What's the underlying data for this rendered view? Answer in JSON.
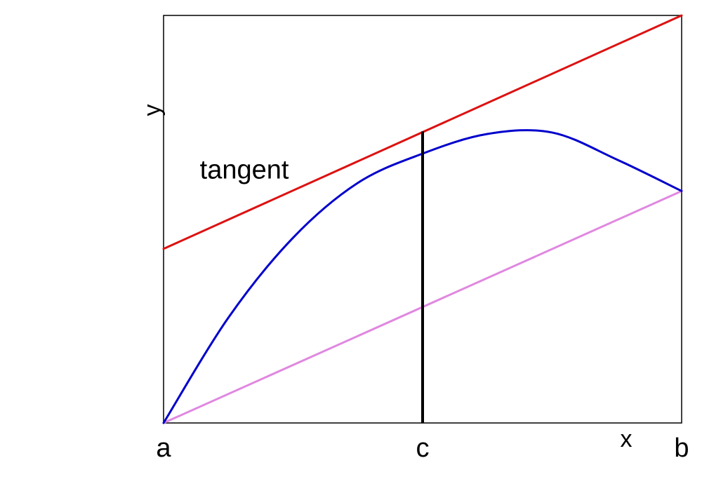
{
  "chart_data": {
    "type": "line",
    "title": "",
    "xlabel": "x",
    "ylabel": "y",
    "xlim": [
      0,
      2
    ],
    "ylim": [
      0,
      1.1
    ],
    "x_tick_labels": [
      {
        "x": 0,
        "label": "a"
      },
      {
        "x": 1,
        "label": "c"
      },
      {
        "x": 2,
        "label": "b"
      }
    ],
    "grid": false,
    "legend": null,
    "series": [
      {
        "kind": "curve",
        "color": "#0000CC",
        "x": [
          0,
          0.25,
          0.5,
          0.75,
          1.0,
          1.25,
          1.5,
          1.75,
          2.0
        ],
        "y": [
          0,
          0.284,
          0.5,
          0.648,
          0.727,
          0.78,
          0.784,
          0.711,
          0.626
        ]
      },
      {
        "kind": "tangent",
        "color": "#DD1111",
        "x": [
          0,
          2
        ],
        "y": [
          0.47,
          1.1
        ]
      },
      {
        "kind": "secant",
        "color": "#E088E0",
        "x": [
          0,
          2
        ],
        "y": [
          0,
          0.626
        ]
      }
    ],
    "vertical_line": {
      "x": 1.0,
      "y_from": 0,
      "y_to": 0.787,
      "color": "#000000"
    },
    "annotations": [
      {
        "text": "tangent",
        "x": 0.14,
        "y": 0.66
      }
    ]
  }
}
